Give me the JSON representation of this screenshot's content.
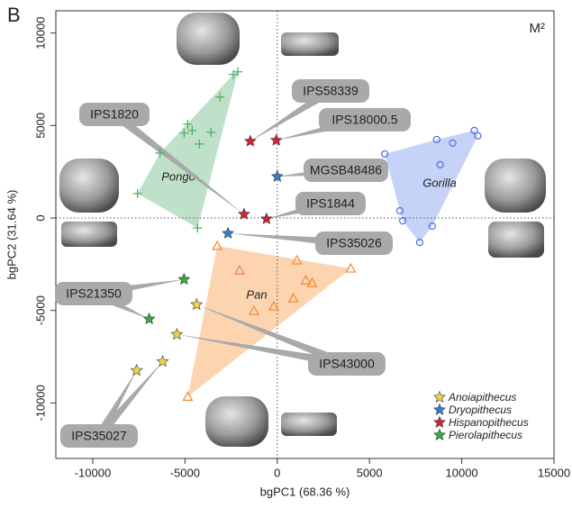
{
  "chart_data": {
    "type": "scatter",
    "panel_label": "B",
    "tooth_label": "M²",
    "x_label": "bgPC1 (68.36 %)",
    "y_label": "bgPC2 (31.64 %)",
    "xlim": [
      -12000,
      15000
    ],
    "ylim": [
      -13000,
      11200
    ],
    "xticks": [
      -10000,
      -5000,
      0,
      5000,
      10000,
      15000
    ],
    "yticks": [
      -10000,
      -5000,
      0,
      5000,
      10000
    ],
    "zero_lines": true,
    "series": [
      {
        "name": "Pongo",
        "marker": "plus",
        "color": "#4caf6a",
        "fill": "#b5dcc0",
        "hull": true,
        "x": [
          -2136,
          -2379,
          -3107,
          -4854,
          -4612,
          -5049,
          -4223,
          -3592,
          -6359,
          -7573,
          -4320
        ],
        "values": [
          7900,
          7760,
          6540,
          5070,
          4730,
          4590,
          4000,
          4630,
          3510,
          1320,
          -540
        ]
      },
      {
        "name": "Gorilla",
        "marker": "circle",
        "color": "#4a6fe3",
        "fill": "#bccbf7",
        "hull": true,
        "x": [
          10680,
          10870,
          8640,
          9510,
          5830,
          8830,
          6650,
          6800,
          8400,
          7720
        ],
        "values": [
          4730,
          4440,
          4240,
          4050,
          3460,
          2880,
          390,
          -150,
          -440,
          -1320
        ]
      },
      {
        "name": "Pan",
        "marker": "triangle",
        "color": "#f08a3a",
        "fill": "#fccca2",
        "hull": true,
        "x": [
          -3250,
          -2040,
          1070,
          3980,
          1550,
          1890,
          -1260,
          -190,
          870,
          -4850
        ],
        "values": [
          -1510,
          -2830,
          -2290,
          -2730,
          -3370,
          -3510,
          -5020,
          -4780,
          -4340,
          -9660
        ]
      },
      {
        "name": "Anoiapithecus",
        "marker": "star",
        "color": "#f2d44a",
        "hull": false,
        "x": [
          -4370,
          -5440,
          -6210,
          -7620
        ],
        "values": [
          -4680,
          -6290,
          -7760,
          -8240
        ]
      },
      {
        "name": "Dryopithecus",
        "marker": "star",
        "color": "#2f7fd6",
        "hull": false,
        "x": [
          0,
          -2670
        ],
        "values": [
          2240,
          -830
        ]
      },
      {
        "name": "Hispanopithecus",
        "marker": "star",
        "color": "#d4232b",
        "hull": false,
        "x": [
          -1460,
          -50,
          -1800,
          -580
        ],
        "values": [
          4150,
          4200,
          200,
          -50
        ]
      },
      {
        "name": "Pierolapithecus",
        "marker": "star",
        "color": "#2bb33a",
        "hull": false,
        "x": [
          -5050,
          -6940
        ],
        "values": [
          -3320,
          -5460
        ]
      }
    ],
    "annotations": [
      "IPS1820",
      "IPS58339",
      "IPS18000.5",
      "MGSB48486",
      "IPS1844",
      "IPS35026",
      "IPS21350",
      "IPS43000",
      "IPS35027"
    ]
  }
}
